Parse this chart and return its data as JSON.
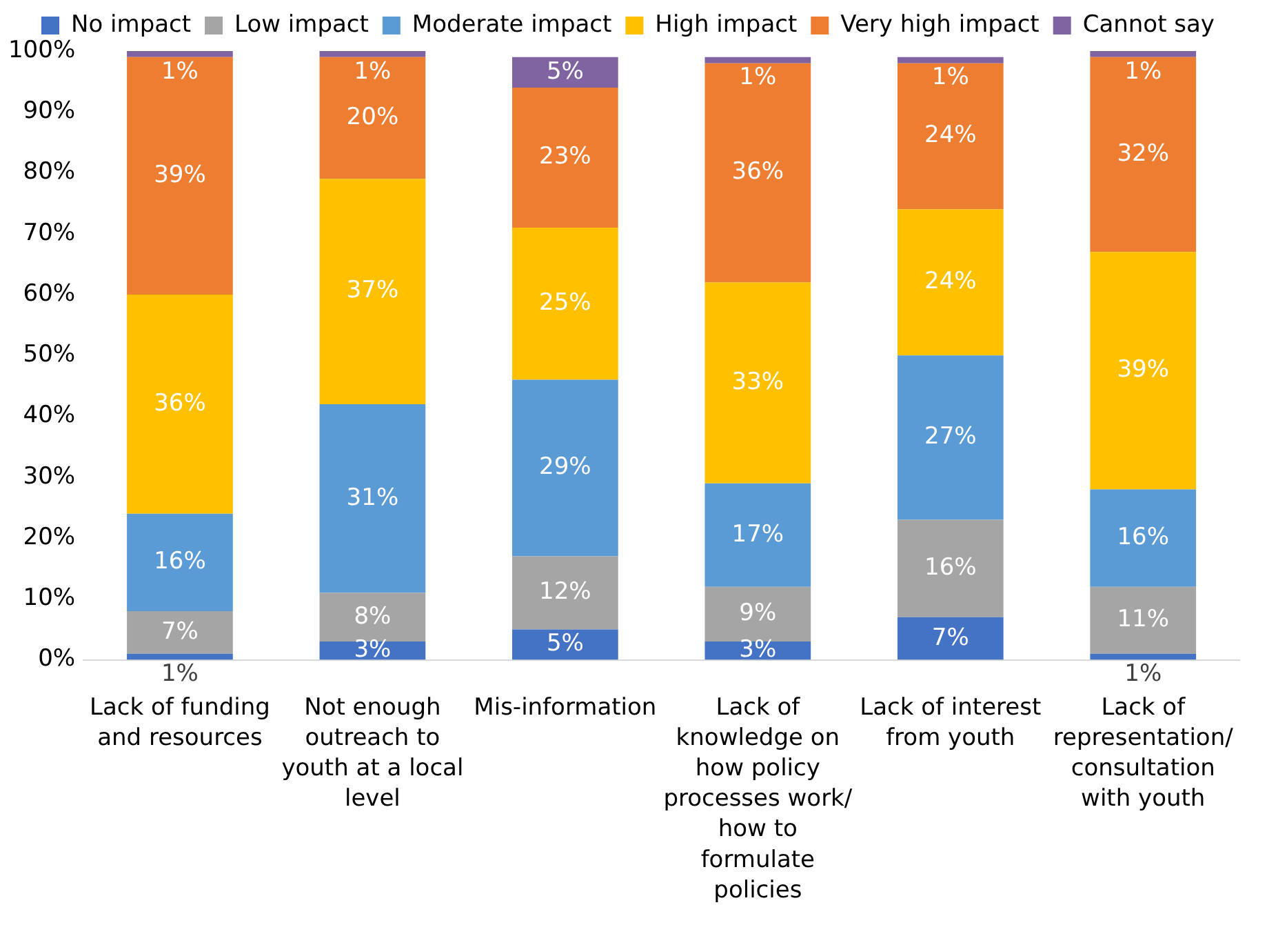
{
  "chart_data": {
    "type": "bar",
    "stacked": true,
    "legend": "top",
    "grid": false,
    "categories": [
      "Lack of funding and resources",
      "Not enough outreach to youth at a local level",
      "Mis-information",
      "Lack of knowledge on how policy processes work/ how to formulate policies",
      "Lack of interest from youth",
      "Lack of representation/ consultation with youth"
    ],
    "ylim": [
      0,
      100
    ],
    "yticks": [
      {
        "value": 0,
        "label": "0%"
      },
      {
        "value": 10,
        "label": "10%"
      },
      {
        "value": 20,
        "label": "20%"
      },
      {
        "value": 30,
        "label": "30%"
      },
      {
        "value": 40,
        "label": "40%"
      },
      {
        "value": 50,
        "label": "50%"
      },
      {
        "value": 60,
        "label": "60%"
      },
      {
        "value": 70,
        "label": "70%"
      },
      {
        "value": 80,
        "label": "80%"
      },
      {
        "value": 90,
        "label": "90%"
      },
      {
        "value": 100,
        "label": "100%"
      }
    ],
    "series": [
      {
        "name": "No impact",
        "color": "#4472c4",
        "values": [
          1,
          3,
          5,
          3,
          7,
          1
        ],
        "value_labels": [
          "1%",
          "3%",
          "5%",
          "3%",
          "7%",
          "1%"
        ]
      },
      {
        "name": "Low impact",
        "color": "#a5a5a5",
        "values": [
          7,
          8,
          12,
          9,
          16,
          11
        ],
        "value_labels": [
          "7%",
          "8%",
          "12%",
          "9%",
          "16%",
          "11%"
        ]
      },
      {
        "name": "Moderate impact",
        "color": "#5b9bd5",
        "values": [
          16,
          31,
          29,
          17,
          27,
          16
        ],
        "value_labels": [
          "16%",
          "31%",
          "29%",
          "17%",
          "27%",
          "16%"
        ]
      },
      {
        "name": "High impact",
        "color": "#ffc000",
        "values": [
          36,
          37,
          25,
          33,
          24,
          39
        ],
        "value_labels": [
          "36%",
          "37%",
          "25%",
          "33%",
          "24%",
          "39%"
        ]
      },
      {
        "name": "Very high impact",
        "color": "#ed7d31",
        "values": [
          39,
          20,
          23,
          36,
          24,
          32
        ],
        "value_labels": [
          "39%",
          "20%",
          "23%",
          "36%",
          "24%",
          "32%"
        ]
      },
      {
        "name": "Cannot say",
        "color": "#8064a2",
        "values": [
          1,
          1,
          5,
          1,
          1,
          1
        ],
        "value_labels": [
          "1%",
          "1%",
          "5%",
          "1%",
          "1%",
          "1%"
        ]
      }
    ]
  }
}
